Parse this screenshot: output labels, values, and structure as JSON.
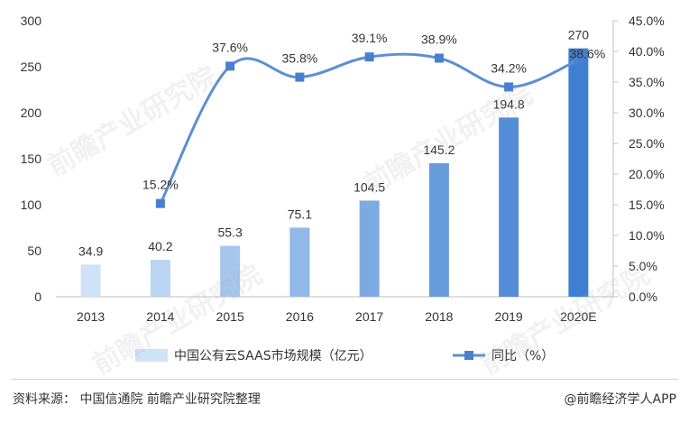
{
  "chart_data": {
    "type": "bar",
    "categories": [
      "2013",
      "2014",
      "2015",
      "2016",
      "2017",
      "2018",
      "2019",
      "2020E"
    ],
    "series": [
      {
        "name": "中国公有云SAAS市场规模（亿元）",
        "type": "bar",
        "axis": "left",
        "values": [
          34.9,
          40.2,
          55.3,
          75.1,
          104.5,
          145.2,
          194.8,
          270
        ],
        "value_labels": [
          "34.9",
          "40.2",
          "55.3",
          "75.1",
          "104.5",
          "145.2",
          "194.8",
          "270"
        ]
      },
      {
        "name": "同比（%）",
        "type": "line",
        "axis": "right",
        "x": [
          "2014",
          "2015",
          "2016",
          "2017",
          "2018",
          "2019",
          "2020E"
        ],
        "values": [
          15.2,
          37.6,
          35.8,
          39.1,
          38.9,
          34.2,
          38.6
        ],
        "value_labels": [
          "15.2%",
          "37.6%",
          "35.8%",
          "39.1%",
          "38.9%",
          "34.2%",
          "38.6%"
        ]
      }
    ],
    "ylim": [
      0,
      300
    ],
    "y_ticks": [
      "0",
      "50",
      "100",
      "150",
      "200",
      "250",
      "300"
    ],
    "y2lim": [
      0,
      45
    ],
    "y2_ticks": [
      "0.0%",
      "5.0%",
      "10.0%",
      "15.0%",
      "20.0%",
      "25.0%",
      "30.0%",
      "35.0%",
      "40.0%",
      "45.0%"
    ],
    "legend": {
      "placement": "bottom",
      "items": [
        "中国公有云SAAS市场规模（亿元）",
        "同比（%）"
      ]
    },
    "colors": {
      "bar_light": "#cfe3f6",
      "bar_dark": "#3f7fd2",
      "line": "#5b8fd6",
      "axis": "#bfbfbf"
    }
  },
  "footer": {
    "source": "资料来源：  中国信通院 前瞻产业研究院整理",
    "brand": "@前瞻经济学人APP"
  },
  "watermark": {
    "text": "前瞻产业研究院"
  }
}
